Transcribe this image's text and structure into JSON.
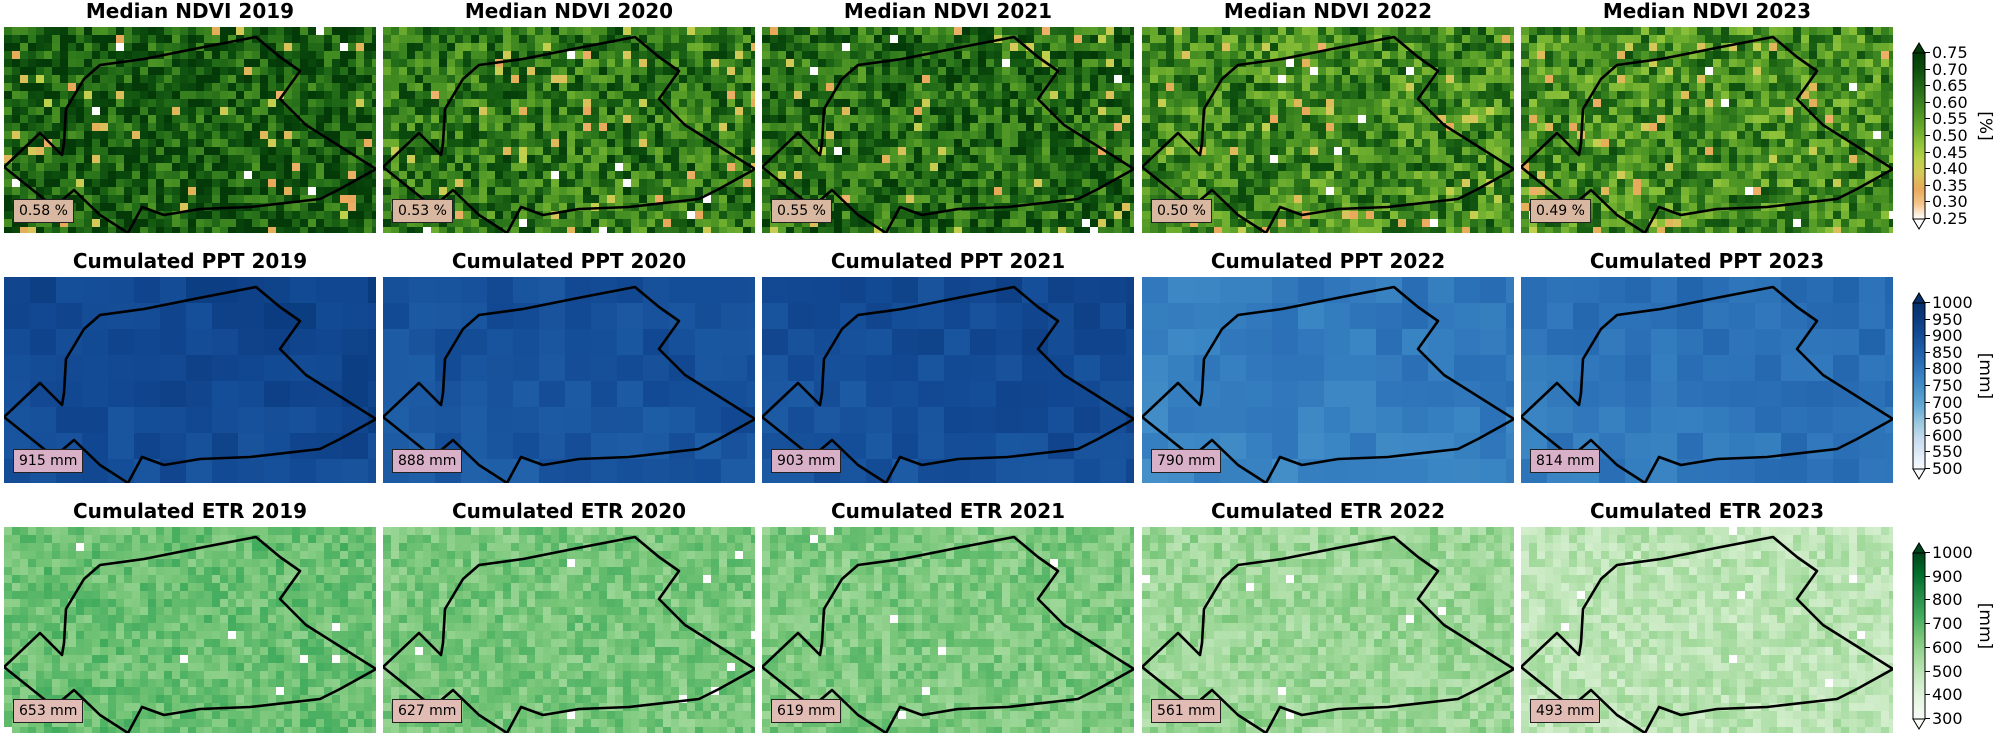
{
  "rows": [
    {
      "variable": "ndvi",
      "panels": [
        {
          "title": "Median NDVI 2019",
          "badge": "0.58 %",
          "mean": 0.58
        },
        {
          "title": "Median NDVI 2020",
          "badge": "0.53 %",
          "mean": 0.53
        },
        {
          "title": "Median NDVI 2021",
          "badge": "0.55 %",
          "mean": 0.55
        },
        {
          "title": "Median NDVI 2022",
          "badge": "0.50 %",
          "mean": 0.5
        },
        {
          "title": "Median NDVI 2023",
          "badge": "0.49 %",
          "mean": 0.49
        }
      ],
      "colorbar": {
        "unit": "[%]",
        "min": 0.25,
        "max": 0.75,
        "ticks": [
          "0.25",
          "0.30",
          "0.35",
          "0.40",
          "0.45",
          "0.50",
          "0.55",
          "0.60",
          "0.65",
          "0.70",
          "0.75"
        ],
        "tick_values": [
          0.25,
          0.3,
          0.35,
          0.4,
          0.45,
          0.5,
          0.55,
          0.6,
          0.65,
          0.7,
          0.75
        ],
        "colors": [
          "#ffffff",
          "#f5c58a",
          "#e9a85a",
          "#d6c85a",
          "#b8d248",
          "#8fc33a",
          "#6aab2d",
          "#4c9424",
          "#327c1d",
          "#1d6515",
          "#0b4b0d",
          "#033a08"
        ],
        "badge_color": "#d8b8a0"
      }
    },
    {
      "variable": "ppt",
      "panels": [
        {
          "title": "Cumulated PPT 2019",
          "badge": "915 mm",
          "mean": 915
        },
        {
          "title": "Cumulated PPT 2020",
          "badge": "888 mm",
          "mean": 888
        },
        {
          "title": "Cumulated PPT 2021",
          "badge": "903 mm",
          "mean": 903
        },
        {
          "title": "Cumulated PPT 2022",
          "badge": "790 mm",
          "mean": 790
        },
        {
          "title": "Cumulated PPT 2023",
          "badge": "814 mm",
          "mean": 814
        }
      ],
      "colorbar": {
        "unit": "[mm]",
        "min": 500,
        "max": 1000,
        "ticks": [
          "500",
          "550",
          "600",
          "650",
          "700",
          "750",
          "800",
          "850",
          "900",
          "950",
          "1000"
        ],
        "tick_values": [
          500,
          550,
          600,
          650,
          700,
          750,
          800,
          850,
          900,
          950,
          1000
        ],
        "colors": [
          "#f7fbff",
          "#deebf7",
          "#c6dbef",
          "#9ecae1",
          "#6baed6",
          "#4d98cc",
          "#3a85c3",
          "#2a6fb6",
          "#1d5ca5",
          "#134a94",
          "#0a3a7e",
          "#08306b"
        ],
        "badge_color": "#d8b0c8"
      }
    },
    {
      "variable": "etr",
      "panels": [
        {
          "title": "Cumulated ETR 2019",
          "badge": "653 mm",
          "mean": 653
        },
        {
          "title": "Cumulated ETR 2020",
          "badge": "627 mm",
          "mean": 627
        },
        {
          "title": "Cumulated ETR 2021",
          "badge": "619 mm",
          "mean": 619
        },
        {
          "title": "Cumulated ETR 2022",
          "badge": "561 mm",
          "mean": 561
        },
        {
          "title": "Cumulated ETR 2023",
          "badge": "493 mm",
          "mean": 493
        }
      ],
      "colorbar": {
        "unit": "[mm]",
        "min": 300,
        "max": 1000,
        "ticks": [
          "300",
          "400",
          "500",
          "600",
          "700",
          "800",
          "900",
          "1000"
        ],
        "tick_values": [
          300,
          400,
          500,
          600,
          700,
          800,
          900,
          1000
        ],
        "colors": [
          "#f7fcf5",
          "#e5f5e0",
          "#c7e9c0",
          "#a1d99b",
          "#74c476",
          "#41ab5d",
          "#238b45",
          "#006d2c",
          "#00441b"
        ],
        "badge_color": "#e0bcb4"
      }
    }
  ]
}
